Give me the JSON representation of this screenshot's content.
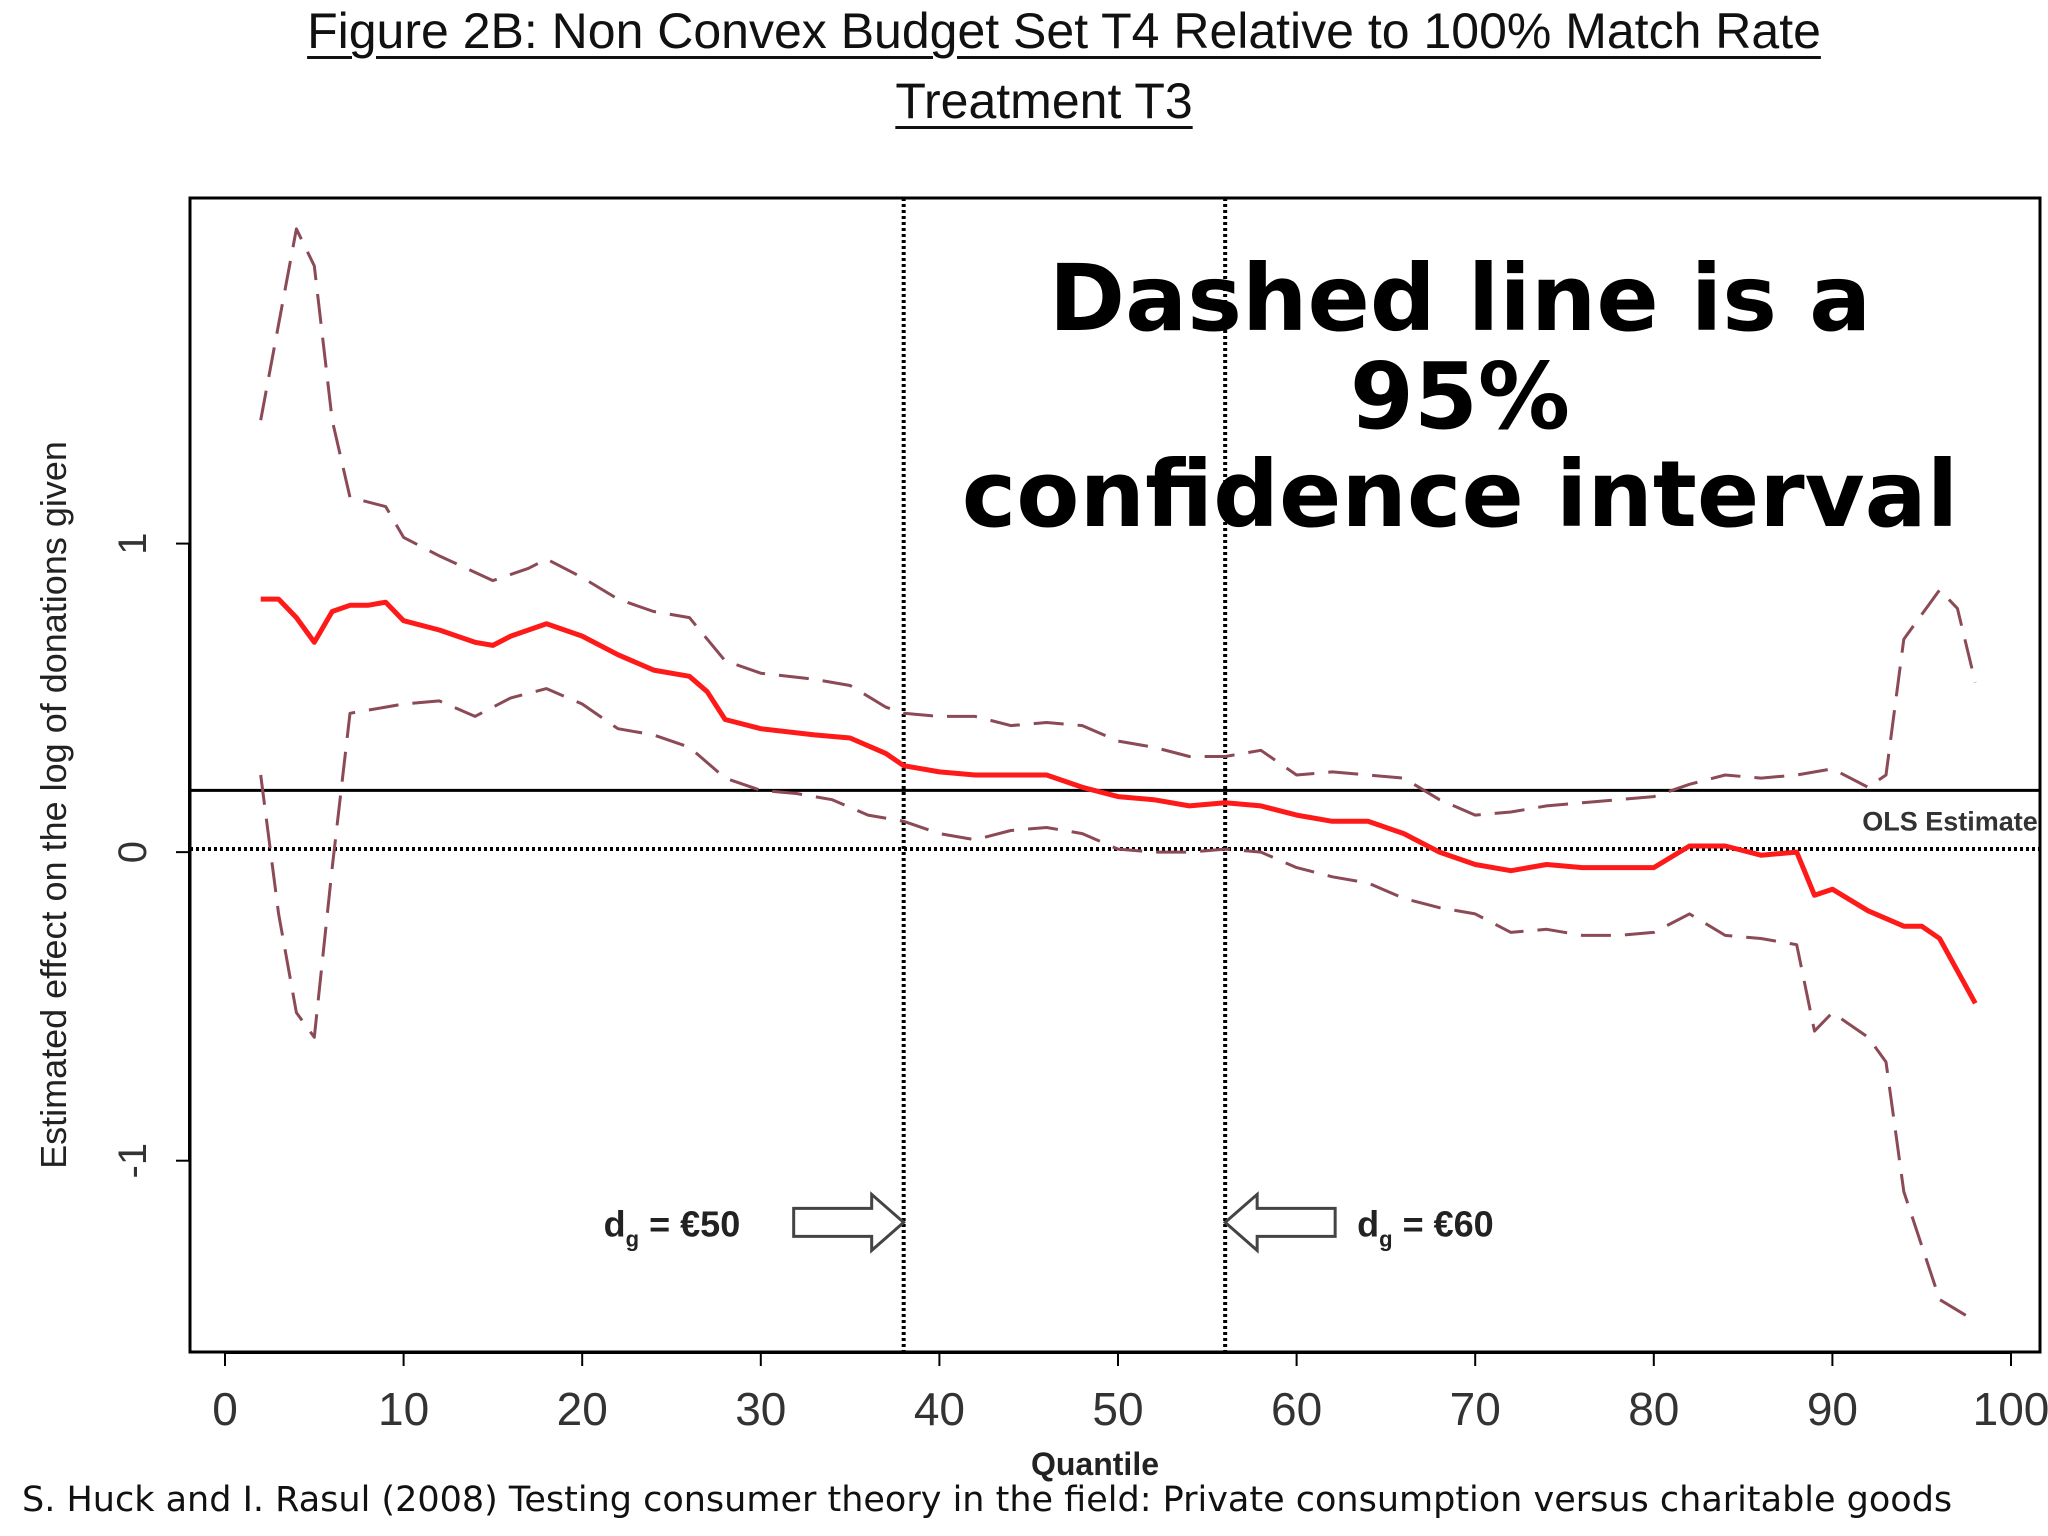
{
  "title_line1": "Figure 2B: Non Convex Budget Set T4 Relative to 100% Match Rate",
  "title_line2": "Treatment T3",
  "annotation_line1": "Dashed line is a 95%",
  "annotation_line2": "confidence interval",
  "citation": "S. Huck and I. Rasul (2008) Testing consumer theory in the field: Private consumption versus charitable goods",
  "colors": {
    "estimate": "#ff1a1a",
    "ci": "#8b4a55",
    "axes": "#000000"
  },
  "chart_data": {
    "type": "line",
    "xlabel": "Quantile",
    "ylabel": "Estimated effect on the log of  donations given",
    "xlim": [
      -2,
      100
    ],
    "ylim": [
      -1.62,
      2.12
    ],
    "xticks": [
      0,
      10,
      20,
      30,
      40,
      50,
      60,
      70,
      80,
      90,
      100
    ],
    "xtick_labels": [
      "0",
      "10",
      "20",
      "30",
      "40",
      "50",
      "60",
      "70",
      "80",
      "90",
      "100"
    ],
    "yticks": [
      -1,
      0,
      1
    ],
    "ytick_labels": [
      "-1",
      "0",
      "1"
    ],
    "grid": false,
    "legend": "none",
    "reference_lines": [
      {
        "orientation": "horizontal",
        "y": 0.2,
        "style": "solid",
        "label": "OLS Estimate"
      },
      {
        "orientation": "horizontal",
        "y": 0.01,
        "style": "dotted"
      },
      {
        "orientation": "vertical",
        "x": 38,
        "style": "dotted"
      },
      {
        "orientation": "vertical",
        "x": 56,
        "style": "dotted"
      }
    ],
    "arrows": [
      {
        "label_main": "d",
        "label_sub": "g",
        "label_rest": " = €50",
        "x": 38,
        "y": -1.2,
        "direction": "right"
      },
      {
        "label_main": "d",
        "label_sub": "g",
        "label_rest": " = €60",
        "x": 56,
        "y": -1.2,
        "direction": "left"
      }
    ],
    "series": [
      {
        "role": "estimate",
        "style": "solid",
        "x": [
          2,
          3,
          4,
          5,
          6,
          7,
          8,
          9,
          10,
          12,
          14,
          15,
          16,
          18,
          20,
          22,
          24,
          26,
          27,
          28,
          30,
          33,
          35,
          37,
          38,
          40,
          42,
          44,
          46,
          48,
          50,
          52,
          54,
          56,
          58,
          60,
          62,
          64,
          66,
          68,
          70,
          72,
          74,
          76,
          78,
          80,
          82,
          84,
          86,
          88,
          89,
          90,
          92,
          94,
          95,
          96,
          98
        ],
        "y": [
          0.82,
          0.82,
          0.76,
          0.68,
          0.78,
          0.8,
          0.8,
          0.81,
          0.75,
          0.72,
          0.68,
          0.67,
          0.7,
          0.74,
          0.7,
          0.64,
          0.59,
          0.57,
          0.52,
          0.43,
          0.4,
          0.38,
          0.37,
          0.32,
          0.28,
          0.26,
          0.25,
          0.25,
          0.25,
          0.21,
          0.18,
          0.17,
          0.15,
          0.16,
          0.15,
          0.12,
          0.1,
          0.1,
          0.06,
          0.0,
          -0.04,
          -0.06,
          -0.04,
          -0.05,
          -0.05,
          -0.05,
          0.02,
          0.02,
          -0.01,
          0.0,
          -0.14,
          -0.12,
          -0.19,
          -0.24,
          -0.24,
          -0.28,
          -0.49
        ]
      },
      {
        "role": "ci_upper",
        "style": "dashed",
        "x": [
          2,
          4,
          5,
          6,
          7,
          9,
          10,
          12,
          15,
          17,
          18,
          20,
          22,
          24,
          26,
          28,
          30,
          33,
          35,
          37,
          38,
          40,
          42,
          44,
          46,
          48,
          50,
          52,
          54,
          56,
          58,
          60,
          62,
          64,
          66,
          68,
          70,
          72,
          74,
          76,
          78,
          80,
          82,
          84,
          86,
          88,
          90,
          92,
          93,
          94,
          96,
          97,
          98
        ],
        "y": [
          1.4,
          2.02,
          1.9,
          1.4,
          1.15,
          1.12,
          1.02,
          0.96,
          0.88,
          0.92,
          0.95,
          0.89,
          0.82,
          0.78,
          0.76,
          0.62,
          0.58,
          0.56,
          0.54,
          0.47,
          0.45,
          0.44,
          0.44,
          0.41,
          0.42,
          0.41,
          0.36,
          0.34,
          0.31,
          0.31,
          0.33,
          0.25,
          0.26,
          0.25,
          0.24,
          0.17,
          0.12,
          0.13,
          0.15,
          0.16,
          0.17,
          0.18,
          0.22,
          0.25,
          0.24,
          0.25,
          0.27,
          0.21,
          0.25,
          0.69,
          0.85,
          0.79,
          0.55
        ]
      },
      {
        "role": "ci_lower",
        "style": "dashed",
        "x": [
          2,
          3,
          4,
          5,
          6,
          7,
          8,
          10,
          12,
          14,
          16,
          18,
          20,
          22,
          24,
          26,
          28,
          30,
          32,
          34,
          36,
          38,
          40,
          42,
          44,
          46,
          48,
          50,
          52,
          54,
          56,
          58,
          60,
          62,
          64,
          66,
          68,
          70,
          72,
          74,
          76,
          78,
          80,
          82,
          84,
          86,
          88,
          89,
          90,
          92,
          93,
          94,
          96,
          98
        ],
        "y": [
          0.25,
          -0.2,
          -0.52,
          -0.6,
          -0.05,
          0.45,
          0.46,
          0.48,
          0.49,
          0.44,
          0.5,
          0.53,
          0.48,
          0.4,
          0.38,
          0.34,
          0.24,
          0.2,
          0.19,
          0.17,
          0.12,
          0.1,
          0.06,
          0.04,
          0.07,
          0.08,
          0.06,
          0.01,
          0.0,
          0.0,
          0.01,
          0.0,
          -0.05,
          -0.08,
          -0.1,
          -0.15,
          -0.18,
          -0.2,
          -0.26,
          -0.25,
          -0.27,
          -0.27,
          -0.26,
          -0.2,
          -0.27,
          -0.28,
          -0.3,
          -0.58,
          -0.52,
          -0.6,
          -0.68,
          -1.1,
          -1.45,
          -1.52
        ]
      }
    ]
  }
}
